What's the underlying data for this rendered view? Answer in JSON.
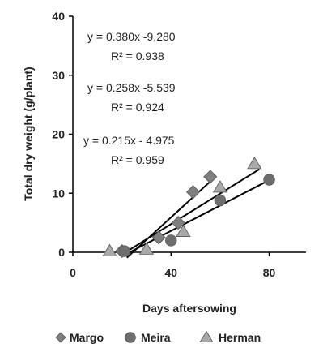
{
  "chart_data": {
    "type": "scatter",
    "title": "",
    "xlabel": "Days aftersowing",
    "ylabel": "Total dry weight (g/plant)",
    "xlim": [
      0,
      95
    ],
    "ylim": [
      0,
      40
    ],
    "xticks": [
      0,
      40,
      80
    ],
    "yticks": [
      0,
      10,
      20,
      30,
      40
    ],
    "grid": false,
    "legend_position": "bottom",
    "series": [
      {
        "name": "Margo",
        "marker": "diamond",
        "color": "#7f7f7f",
        "points": [
          [
            20,
            0.2
          ],
          [
            35,
            2.5
          ],
          [
            43,
            5.0
          ],
          [
            49,
            10.2
          ],
          [
            56,
            12.8
          ]
        ],
        "trendline": {
          "slope": 0.38,
          "intercept": -9.28,
          "x_range": [
            22,
            57
          ]
        }
      },
      {
        "name": "Meira",
        "marker": "circle",
        "color": "#6e6e6e",
        "points": [
          [
            21,
            0.2
          ],
          [
            40,
            2.0
          ],
          [
            60,
            8.8
          ],
          [
            80,
            12.3
          ]
        ],
        "trendline": {
          "slope": 0.215,
          "intercept": -4.975,
          "x_range": [
            22,
            80
          ]
        }
      },
      {
        "name": "Herman",
        "marker": "triangle",
        "color": "#a8a8a8",
        "points": [
          [
            15,
            0.2
          ],
          [
            30,
            0.5
          ],
          [
            45,
            3.5
          ],
          [
            60,
            11.0
          ],
          [
            74,
            15.0
          ]
        ],
        "trendline": {
          "slope": 0.258,
          "intercept": -5.539,
          "x_range": [
            22,
            76
          ]
        }
      }
    ],
    "annotations": [
      {
        "equation": "y = 0.380x  -9.280",
        "r2": "R² = 0.938"
      },
      {
        "equation": "y = 0.258x  -5.539",
        "r2": "R² = 0.924"
      },
      {
        "equation": "y = 0.215x  - 4.975",
        "r2": "R² = 0.959"
      }
    ]
  }
}
